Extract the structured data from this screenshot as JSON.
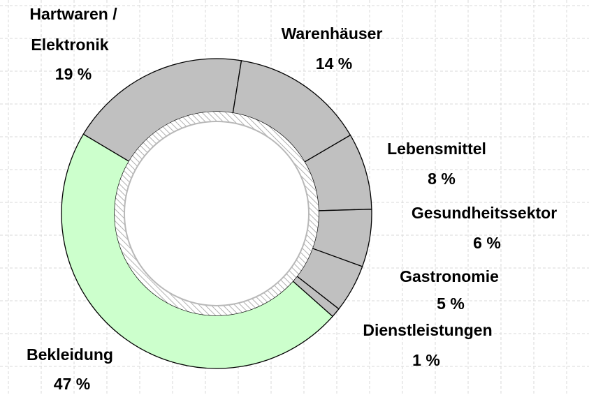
{
  "chart_data": {
    "type": "donut",
    "categories": [
      [
        "Hartwaren /",
        "Elektronik"
      ],
      "Warenhäuser",
      "Lebensmittel",
      "Gesundheitssektor",
      "Gastronomie",
      "Dienstleistungen",
      "Bekleidung"
    ],
    "values": [
      19,
      14,
      8,
      6,
      5,
      1,
      47
    ],
    "value_labels": [
      "19 %",
      "14 %",
      "8 %",
      "6 %",
      "5 %",
      "1 %",
      "47 %"
    ],
    "colors": [
      "#c0c0c0",
      "#c0c0c0",
      "#c0c0c0",
      "#c0c0c0",
      "#c0c0c0",
      "#c0c0c0",
      "#ccffcc"
    ]
  }
}
